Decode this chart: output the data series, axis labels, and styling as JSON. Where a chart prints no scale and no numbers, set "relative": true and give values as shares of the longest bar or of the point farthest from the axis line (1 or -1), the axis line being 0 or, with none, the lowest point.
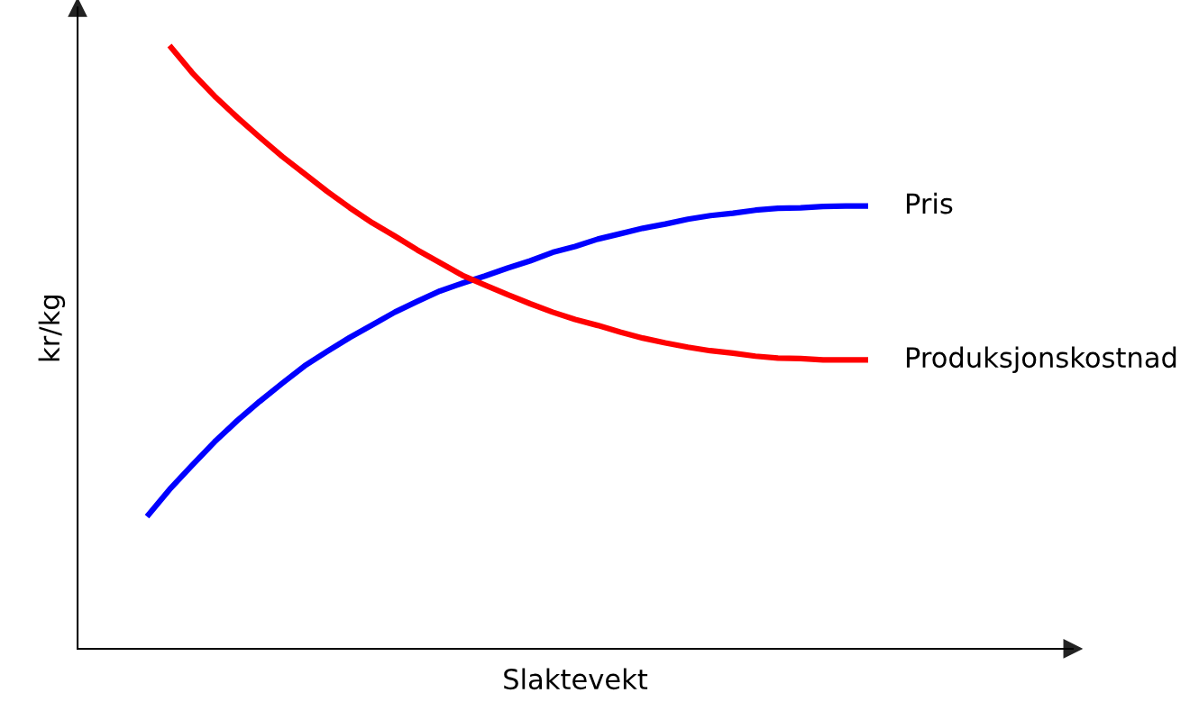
{
  "chart_data": {
    "type": "line",
    "relative": true,
    "xlabel": "Slaktevekt",
    "ylabel": "kr/kg",
    "legend": false,
    "grid": false,
    "marker": "none",
    "line_style": "solid",
    "categories": [
      null,
      null,
      null,
      null,
      null,
      null,
      null,
      null,
      null,
      null,
      null,
      null,
      null,
      null,
      null,
      null,
      null,
      null,
      null,
      null,
      null,
      null,
      null,
      null,
      null,
      null,
      null,
      null,
      null,
      null,
      null,
      null,
      null
    ],
    "series": [
      {
        "name": "Pris",
        "color": "#0000ff",
        "values": [
          0.219,
          0.264,
          0.304,
          0.343,
          0.378,
          0.41,
          0.44,
          0.469,
          0.493,
          0.516,
          0.537,
          0.558,
          0.576,
          0.593,
          0.606,
          0.618,
          0.631,
          0.643,
          0.657,
          0.667,
          0.679,
          0.688,
          0.697,
          0.704,
          0.712,
          0.718,
          0.722,
          0.727,
          0.73,
          0.731,
          0.733,
          0.734,
          0.734
        ]
      },
      {
        "name": "Produksjonskostnad",
        "color": "#ff0000",
        "values": [
          null,
          1.0,
          0.955,
          0.916,
          0.881,
          0.848,
          0.816,
          0.787,
          0.758,
          0.731,
          0.706,
          0.684,
          0.661,
          0.64,
          0.619,
          0.603,
          0.587,
          0.572,
          0.558,
          0.546,
          0.536,
          0.525,
          0.515,
          0.507,
          0.5,
          0.494,
          0.49,
          0.485,
          0.482,
          0.481,
          0.479,
          0.479,
          0.479
        ]
      }
    ]
  }
}
